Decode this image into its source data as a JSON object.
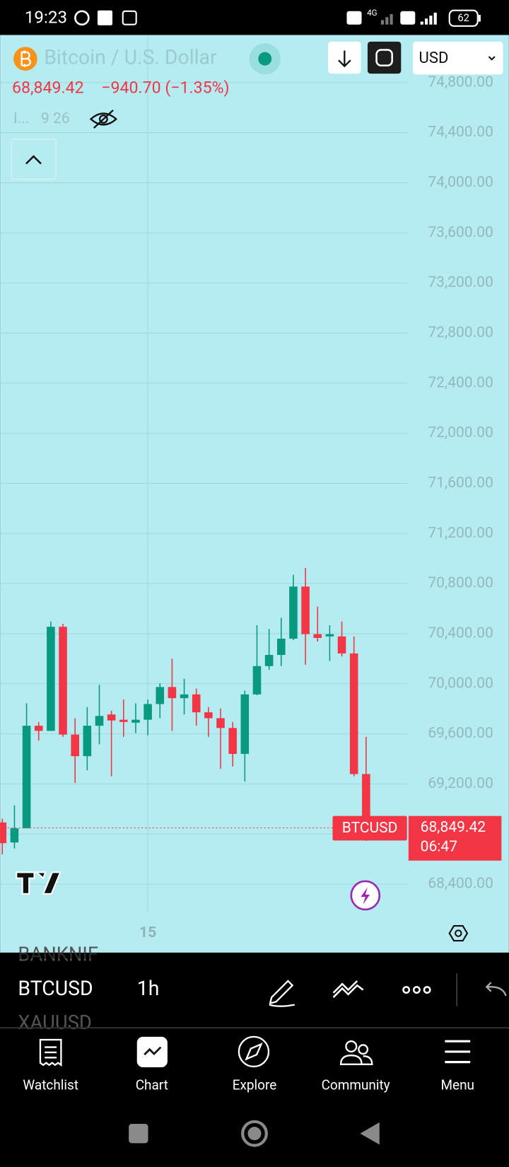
{
  "status_bar": {
    "time": "19:23",
    "network": "4G",
    "battery": "62"
  },
  "header": {
    "title": "Bitcoin / U.S. Dollar",
    "price": "68,849.42",
    "change": "−940.70 (−1.35%)",
    "indicator": "I...",
    "indicator_values": "9 26",
    "currency": "USD"
  },
  "chart_data": {
    "type": "candlestick",
    "categories": [
      null,
      null,
      null,
      null,
      null,
      null,
      null,
      null,
      null,
      null,
      null,
      null,
      "15",
      null,
      null,
      null,
      null,
      null,
      null,
      null,
      null,
      null,
      null,
      null,
      null,
      null,
      null,
      null,
      null,
      null,
      null
    ],
    "open": [
      68893,
      68733,
      68846,
      69665,
      69624,
      70455,
      69594,
      69422,
      69665,
      69755,
      69713,
      69689,
      69713,
      69838,
      69974,
      69885,
      69915,
      69772,
      69725,
      69647,
      69440,
      69915,
      70141,
      70230,
      70360,
      70776,
      70396,
      70378,
      70378,
      70242,
      69279
    ],
    "high": [
      68923,
      69030,
      69844,
      69695,
      70497,
      70479,
      69725,
      69814,
      69992,
      69784,
      69874,
      69844,
      69874,
      70004,
      70200,
      70040,
      69962,
      69814,
      69802,
      69695,
      69944,
      70467,
      70437,
      70527,
      70871,
      70925,
      70616,
      70467,
      70497,
      70378,
      69576
    ],
    "low": [
      68638,
      68685,
      68846,
      69547,
      69624,
      69576,
      69208,
      69309,
      69517,
      69261,
      69576,
      69606,
      69588,
      69725,
      69624,
      69755,
      69665,
      69576,
      69321,
      69339,
      69220,
      69909,
      70111,
      70141,
      70348,
      70152,
      70337,
      70182,
      70218,
      69261,
      68745
    ],
    "close": [
      68727,
      68846,
      69665,
      69624,
      70455,
      69594,
      69422,
      69665,
      69743,
      69707,
      69695,
      69713,
      69838,
      69974,
      69885,
      69915,
      69772,
      69725,
      69647,
      69440,
      69915,
      70141,
      70230,
      70360,
      70776,
      70396,
      70366,
      70396,
      70242,
      69279,
      68849.42
    ],
    "up_color": "#089981",
    "down_color": "#f23645",
    "ylim": [
      68180,
      75180
    ],
    "yticks": [
      {
        "value": 68400,
        "label": "68,400.00"
      },
      {
        "value": 68800,
        "label": "68,800.00"
      },
      {
        "value": 69200,
        "label": "69,200.00"
      },
      {
        "value": 69600,
        "label": "69,600.00"
      },
      {
        "value": 70000,
        "label": "70,000.00"
      },
      {
        "value": 70400,
        "label": "70,400.00"
      },
      {
        "value": 70800,
        "label": "70,800.00"
      },
      {
        "value": 71200,
        "label": "71,200.00"
      },
      {
        "value": 71600,
        "label": "71,600.00"
      },
      {
        "value": 72000,
        "label": "72,000.00"
      },
      {
        "value": 72400,
        "label": "72,400.00"
      },
      {
        "value": 72800,
        "label": "72,800.00"
      },
      {
        "value": 73200,
        "label": "73,200.00"
      },
      {
        "value": 73600,
        "label": "73,600.00"
      },
      {
        "value": 74000,
        "label": "74,000.00"
      },
      {
        "value": 74400,
        "label": "74,400.00"
      },
      {
        "value": 74800,
        "label": "74,800.00"
      }
    ],
    "grid": true,
    "last_price": {
      "value": 68849.42,
      "label": "68,849.42"
    },
    "symbol_tag": "BTCUSD",
    "countdown": "06:47"
  },
  "toolbar": {
    "symbols": [
      "BANKNIF",
      "BTCUSD",
      "XAUUSD"
    ],
    "interval": "1h"
  },
  "tabs": [
    "Watchlist",
    "Chart",
    "Explore",
    "Community",
    "Menu"
  ]
}
